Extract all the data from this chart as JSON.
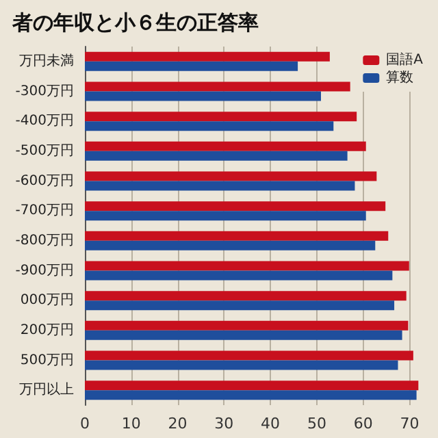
{
  "chart_data": {
    "type": "bar",
    "orientation": "horizontal",
    "title": "者の年収と小６生の正答率",
    "categories": [
      "万円未満",
      "-300万円",
      "-400万円",
      "-500万円",
      "-600万円",
      "-700万円",
      "-800万円",
      "-900万円",
      "000万円",
      "200万円",
      "500万円",
      "万円以上"
    ],
    "series": [
      {
        "name": "国語A",
        "color": "#c8101e",
        "values": [
          52.8,
          57.2,
          58.6,
          60.6,
          62.9,
          64.8,
          65.4,
          69.9,
          69.3,
          69.7,
          70.8,
          71.9
        ]
      },
      {
        "name": "算数",
        "color": "#1f4e9c",
        "values": [
          45.9,
          50.9,
          53.6,
          56.6,
          58.2,
          60.6,
          62.6,
          66.3,
          66.7,
          68.4,
          67.5,
          71.5
        ]
      }
    ],
    "xlim": [
      0,
      72
    ],
    "xticks": [
      0,
      10,
      20,
      30,
      40,
      50,
      60,
      70
    ],
    "grid": "x",
    "legend": "top right"
  }
}
